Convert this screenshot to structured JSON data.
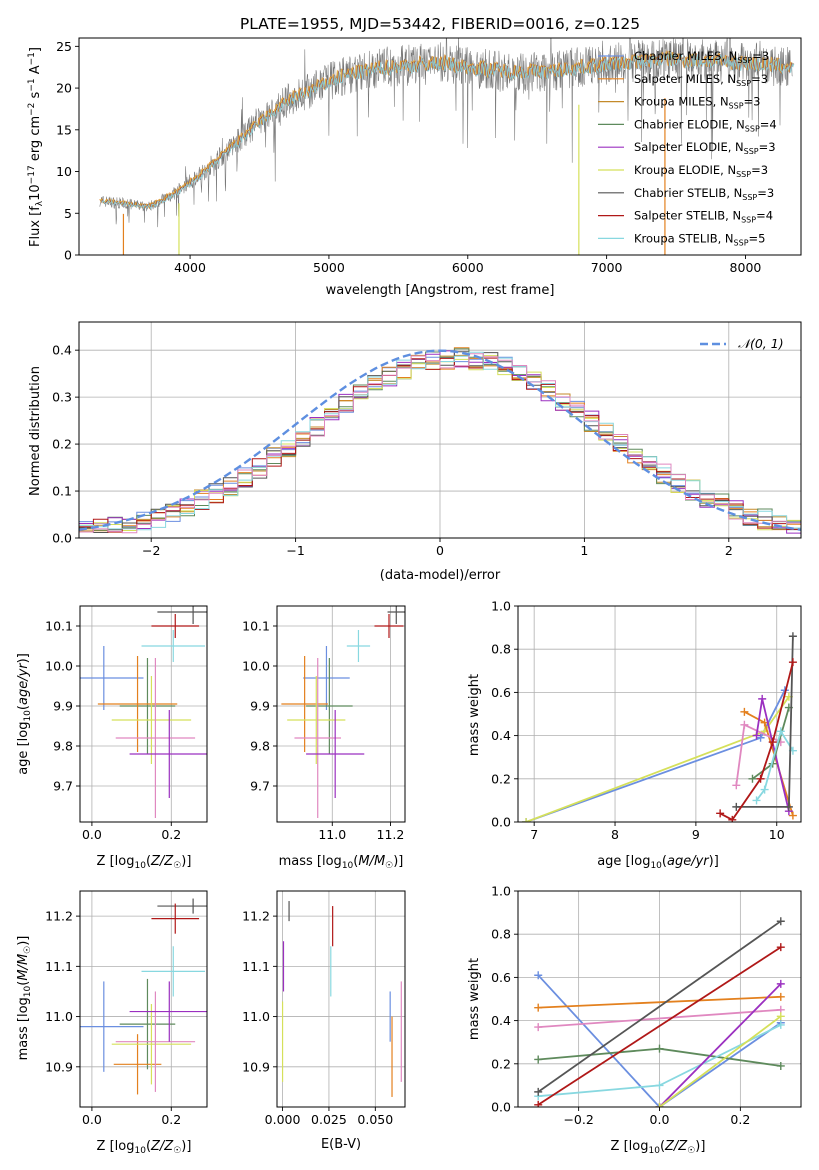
{
  "colors": {
    "chabrier_miles": "#6b8fe0",
    "salpeter_miles": "#e3801e",
    "kroupa_miles": "#c48a2a",
    "chabrier_elodie": "#5e8a5c",
    "salpeter_elodie": "#9b30c0",
    "kroupa_elodie": "#d5e05a",
    "chabrier_stelib": "#555555",
    "salpeter_stelib": "#b01818",
    "kroupa_stelib": "#88d8e0",
    "pink": "#e088c0",
    "normal_curve": "#5e8fe0",
    "gray_spectrum": "#777777"
  },
  "chart_data": [
    {
      "id": "spectrum",
      "type": "line",
      "title": "PLATE=1955, MJD=53442, FIBERID=0016, z=0.125",
      "xlabel": "wavelength [Angstrom, rest frame]",
      "ylabel": "Flux [f_λ10^-17 erg cm^-2 s^-1 A^-1]",
      "xlim": [
        3200,
        8400
      ],
      "ylim": [
        0,
        26
      ],
      "xticks": [
        4000,
        5000,
        6000,
        7000,
        8000
      ],
      "yticks": [
        0,
        5,
        10,
        15,
        20,
        25
      ],
      "grid": false,
      "legend_placement": "right",
      "continuum": [
        [
          3350,
          6.5
        ],
        [
          3700,
          5.8
        ],
        [
          3900,
          7.5
        ],
        [
          4100,
          10
        ],
        [
          4300,
          13
        ],
        [
          4500,
          16
        ],
        [
          4700,
          18.5
        ],
        [
          4900,
          20
        ],
        [
          5100,
          21.5
        ],
        [
          5400,
          22.5
        ],
        [
          5800,
          23
        ],
        [
          6000,
          22.5
        ],
        [
          6300,
          22
        ],
        [
          6600,
          22
        ],
        [
          6800,
          22.5
        ],
        [
          7100,
          23
        ],
        [
          7400,
          23.5
        ],
        [
          7700,
          23.3
        ],
        [
          8000,
          23
        ],
        [
          8350,
          22.5
        ]
      ],
      "series": [
        {
          "label": "Chabrier MILES, N_SSP=3",
          "name": "Chabrier MILES, N",
          "sub": "SSP",
          "eq": "=3",
          "color_key": "chabrier_miles"
        },
        {
          "label": "Salpeter MILES, N_SSP=3",
          "name": "Salpeter MILES, N",
          "sub": "SSP",
          "eq": "=3",
          "color_key": "salpeter_miles"
        },
        {
          "label": "Kroupa MILES, N_SSP=3",
          "name": "Kroupa MILES, N",
          "sub": "SSP",
          "eq": "=3",
          "color_key": "kroupa_miles"
        },
        {
          "label": "Chabrier ELODIE, N_SSP=4",
          "name": "Chabrier ELODIE, N",
          "sub": "SSP",
          "eq": "=4",
          "color_key": "chabrier_elodie"
        },
        {
          "label": "Salpeter ELODIE, N_SSP=3",
          "name": "Salpeter ELODIE, N",
          "sub": "SSP",
          "eq": "=3",
          "color_key": "salpeter_elodie"
        },
        {
          "label": "Kroupa ELODIE, N_SSP=3",
          "name": "Kroupa ELODIE, N",
          "sub": "SSP",
          "eq": "=3",
          "color_key": "kroupa_elodie"
        },
        {
          "label": "Chabrier STELIB, N_SSP=3",
          "name": "Chabrier STELIB, N",
          "sub": "SSP",
          "eq": "=3",
          "color_key": "chabrier_stelib"
        },
        {
          "label": "Salpeter STELIB, N_SSP=4",
          "name": "Salpeter STELIB, N",
          "sub": "SSP",
          "eq": "=4",
          "color_key": "salpeter_stelib"
        },
        {
          "label": "Kroupa STELIB, N_SSP=5",
          "name": "Kroupa STELIB, N",
          "sub": "SSP",
          "eq": "=5",
          "color_key": "kroupa_stelib"
        }
      ]
    },
    {
      "id": "residuals",
      "type": "line",
      "xlabel": "(data-model)/error",
      "ylabel": "Normed distribution",
      "xlim": [
        -2.5,
        2.5
      ],
      "ylim": [
        0,
        0.46
      ],
      "xticks": [
        -2,
        -1,
        0,
        1,
        2
      ],
      "xtick_labels": [
        "−2",
        "−1",
        "0",
        "1",
        "2"
      ],
      "yticks": [
        0.0,
        0.1,
        0.2,
        0.3,
        0.4
      ],
      "ytick_labels": [
        "0.0",
        "0.1",
        "0.2",
        "0.3",
        "0.4"
      ],
      "grid": true,
      "legend_placement": "top-right",
      "legend_label": "𝒩(0, 1)",
      "normal_mu": 0.0,
      "normal_sigma": 1.0,
      "bin_width": 0.1
    },
    {
      "id": "age_vs_Z",
      "type": "scatter",
      "xlabel": "Z [log10(Z/Z☉)]",
      "ylabel": "age [log10(age/yr)]",
      "xlim": [
        -0.03,
        0.29
      ],
      "ylim": [
        9.61,
        10.15
      ],
      "xticks": [
        0.0,
        0.2
      ],
      "xtick_labels": [
        "0.0",
        "0.2"
      ],
      "yticks": [
        9.7,
        9.8,
        9.9,
        10.0,
        10.1
      ],
      "ytick_labels": [
        "9.7",
        "9.8",
        "9.9",
        "10.0",
        "10.1"
      ],
      "grid": true,
      "points": [
        {
          "color_key": "chabrier_stelib",
          "x": 0.255,
          "xerr": 0.09,
          "y": 10.135,
          "yerr": 0.03
        },
        {
          "color_key": "salpeter_stelib",
          "x": 0.21,
          "xerr": 0.06,
          "y": 10.1,
          "yerr": 0.03
        },
        {
          "color_key": "kroupa_stelib",
          "x": 0.205,
          "xerr": 0.08,
          "y": 10.05,
          "yerr": 0.04
        },
        {
          "color_key": "chabrier_miles",
          "x": 0.03,
          "xerr": 0.1,
          "y": 9.97,
          "yerr": 0.08
        },
        {
          "color_key": "chabrier_elodie",
          "x": 0.14,
          "xerr": 0.07,
          "y": 9.9,
          "yerr": 0.12
        },
        {
          "color_key": "salpeter_miles",
          "x": 0.115,
          "xerr": 0.1,
          "y": 9.905,
          "yerr": 0.12
        },
        {
          "color_key": "kroupa_elodie",
          "x": 0.15,
          "xerr": 0.1,
          "y": 9.865,
          "yerr": 0.11
        },
        {
          "color_key": "pink",
          "x": 0.16,
          "xerr": 0.1,
          "y": 9.82,
          "yerr": 0.2
        },
        {
          "color_key": "salpeter_elodie",
          "x": 0.195,
          "xerr": 0.1,
          "y": 9.78,
          "yerr": 0.11
        }
      ]
    },
    {
      "id": "age_vs_mass",
      "type": "scatter",
      "xlabel": "mass [log10(M/M☉)]",
      "xlim": [
        10.81,
        11.25
      ],
      "ylim": [
        9.61,
        10.15
      ],
      "xticks": [
        11.0,
        11.2
      ],
      "xtick_labels": [
        "11.0",
        "11.2"
      ],
      "yticks": [
        9.7,
        9.8,
        9.9,
        10.0,
        10.1
      ],
      "ytick_labels": [
        "9.7",
        "9.8",
        "9.9",
        "10.0",
        "10.1"
      ],
      "grid": true,
      "points": [
        {
          "color_key": "chabrier_stelib",
          "x": 11.22,
          "xerr": 0.03,
          "y": 10.135,
          "yerr": 0.03
        },
        {
          "color_key": "salpeter_stelib",
          "x": 11.195,
          "xerr": 0.05,
          "y": 10.1,
          "yerr": 0.03
        },
        {
          "color_key": "kroupa_stelib",
          "x": 11.09,
          "xerr": 0.04,
          "y": 10.05,
          "yerr": 0.04
        },
        {
          "color_key": "chabrier_miles",
          "x": 10.98,
          "xerr": 0.08,
          "y": 9.97,
          "yerr": 0.08
        },
        {
          "color_key": "chabrier_elodie",
          "x": 10.99,
          "xerr": 0.08,
          "y": 9.9,
          "yerr": 0.12
        },
        {
          "color_key": "salpeter_miles",
          "x": 10.905,
          "xerr": 0.08,
          "y": 9.905,
          "yerr": 0.12
        },
        {
          "color_key": "kroupa_elodie",
          "x": 10.945,
          "xerr": 0.1,
          "y": 9.865,
          "yerr": 0.11
        },
        {
          "color_key": "pink",
          "x": 10.95,
          "xerr": 0.08,
          "y": 9.82,
          "yerr": 0.2
        },
        {
          "color_key": "salpeter_elodie",
          "x": 11.01,
          "xerr": 0.1,
          "y": 9.78,
          "yerr": 0.11
        }
      ]
    },
    {
      "id": "weight_vs_age",
      "type": "line",
      "xlabel": "age [log10(age/yr)]",
      "ylabel": "mass weight",
      "xlim": [
        6.8,
        10.3
      ],
      "ylim": [
        0,
        1
      ],
      "xticks": [
        7,
        8,
        9,
        10
      ],
      "xtick_labels": [
        "7",
        "8",
        "9",
        "10"
      ],
      "yticks": [
        0,
        0.2,
        0.4,
        0.6,
        0.8,
        1.0
      ],
      "ytick_labels": [
        "0.0",
        "0.2",
        "0.4",
        "0.6",
        "0.8",
        "1.0"
      ],
      "grid": true,
      "series": [
        {
          "color_key": "chabrier_miles",
          "points": [
            [
              6.9,
              0.0
            ],
            [
              9.8,
              0.39
            ],
            [
              10.1,
              0.61
            ]
          ]
        },
        {
          "color_key": "kroupa_elodie",
          "points": [
            [
              6.9,
              0.0
            ],
            [
              9.85,
              0.42
            ],
            [
              10.15,
              0.58
            ]
          ]
        },
        {
          "color_key": "salpeter_miles",
          "points": [
            [
              9.6,
              0.51
            ],
            [
              9.85,
              0.46
            ],
            [
              10.2,
              0.03
            ]
          ]
        },
        {
          "color_key": "pink",
          "points": [
            [
              9.5,
              0.17
            ],
            [
              9.6,
              0.45
            ],
            [
              10.05,
              0.37
            ]
          ]
        },
        {
          "color_key": "salpeter_elodie",
          "points": [
            [
              9.75,
              0.4
            ],
            [
              9.82,
              0.57
            ],
            [
              10.15,
              0.05
            ]
          ]
        },
        {
          "color_key": "chabrier_elodie",
          "points": [
            [
              9.7,
              0.2
            ],
            [
              9.95,
              0.27
            ],
            [
              10.15,
              0.53
            ]
          ]
        },
        {
          "color_key": "kroupa_stelib",
          "points": [
            [
              9.75,
              0.1
            ],
            [
              9.85,
              0.15
            ],
            [
              10.05,
              0.42
            ],
            [
              10.2,
              0.33
            ]
          ]
        },
        {
          "color_key": "chabrier_stelib",
          "points": [
            [
              9.5,
              0.07
            ],
            [
              10.15,
              0.07
            ],
            [
              10.2,
              0.86
            ]
          ]
        },
        {
          "color_key": "salpeter_stelib",
          "points": [
            [
              9.3,
              0.04
            ],
            [
              9.45,
              0.01
            ],
            [
              9.8,
              0.2
            ],
            [
              9.95,
              0.37
            ],
            [
              10.2,
              0.74
            ]
          ]
        }
      ]
    },
    {
      "id": "mass_vs_Z",
      "type": "scatter",
      "xlabel": "Z [log10(Z/Z☉)]",
      "ylabel": "mass [log10(M/M☉)]",
      "xlim": [
        -0.03,
        0.29
      ],
      "ylim": [
        10.82,
        11.25
      ],
      "xticks": [
        0.0,
        0.2
      ],
      "xtick_labels": [
        "0.0",
        "0.2"
      ],
      "yticks": [
        10.9,
        11.0,
        11.1,
        11.2
      ],
      "ytick_labels": [
        "10.9",
        "11.0",
        "11.1",
        "11.2"
      ],
      "grid": true,
      "points": [
        {
          "color_key": "chabrier_stelib",
          "x": 0.255,
          "xerr": 0.09,
          "y": 11.22,
          "yerr": 0.015
        },
        {
          "color_key": "salpeter_stelib",
          "x": 0.21,
          "xerr": 0.06,
          "y": 11.195,
          "yerr": 0.03
        },
        {
          "color_key": "kroupa_stelib",
          "x": 0.205,
          "xerr": 0.08,
          "y": 11.09,
          "yerr": 0.05
        },
        {
          "color_key": "chabrier_miles",
          "x": 0.03,
          "xerr": 0.1,
          "y": 10.98,
          "yerr": 0.09
        },
        {
          "color_key": "chabrier_elodie",
          "x": 0.14,
          "xerr": 0.07,
          "y": 10.985,
          "yerr": 0.09
        },
        {
          "color_key": "salpeter_miles",
          "x": 0.115,
          "xerr": 0.06,
          "y": 10.905,
          "yerr": 0.06
        },
        {
          "color_key": "kroupa_elodie",
          "x": 0.15,
          "xerr": 0.1,
          "y": 10.945,
          "yerr": 0.08
        },
        {
          "color_key": "pink",
          "x": 0.16,
          "xerr": 0.1,
          "y": 10.95,
          "yerr": 0.1
        },
        {
          "color_key": "salpeter_elodie",
          "x": 0.195,
          "xerr": 0.1,
          "y": 11.01,
          "yerr": 0.06
        }
      ]
    },
    {
      "id": "mass_vs_EBV",
      "type": "scatter",
      "xlabel": "E(B-V)",
      "xlim": [
        -0.003,
        0.066
      ],
      "ylim": [
        10.82,
        11.25
      ],
      "xticks": [
        0.0,
        0.025,
        0.05
      ],
      "xtick_labels": [
        "0.000",
        "0.025",
        "0.050"
      ],
      "yticks": [
        10.9,
        11.0,
        11.1,
        11.2
      ],
      "ytick_labels": [
        "10.9",
        "11.0",
        "11.1",
        "11.2"
      ],
      "grid": true,
      "points": [
        {
          "color_key": "chabrier_stelib",
          "x": 0.0035,
          "y": 11.21,
          "yerr": 0.02
        },
        {
          "color_key": "salpeter_elodie",
          "x": 0.0005,
          "y": 11.1,
          "yerr": 0.05
        },
        {
          "color_key": "kroupa_elodie",
          "x": 0.0,
          "y": 10.95,
          "yerr": 0.08
        },
        {
          "color_key": "salpeter_stelib",
          "x": 0.027,
          "y": 11.18,
          "yerr": 0.04
        },
        {
          "color_key": "kroupa_stelib",
          "x": 0.026,
          "y": 11.09,
          "yerr": 0.05
        },
        {
          "color_key": "chabrier_miles",
          "x": 0.058,
          "y": 11.0,
          "yerr": 0.05
        },
        {
          "color_key": "salpeter_miles",
          "x": 0.059,
          "y": 10.92,
          "yerr": 0.08
        },
        {
          "color_key": "pink",
          "x": 0.064,
          "y": 10.97,
          "yerr": 0.1
        }
      ]
    },
    {
      "id": "weight_vs_Z",
      "type": "line",
      "xlabel": "Z [log10(Z/Z☉)]",
      "ylabel": "mass weight",
      "xlim": [
        -0.35,
        0.35
      ],
      "ylim": [
        0,
        1
      ],
      "xticks": [
        -0.2,
        0.0,
        0.2
      ],
      "xtick_labels": [
        "−0.2",
        "0.0",
        "0.2"
      ],
      "yticks": [
        0,
        0.2,
        0.4,
        0.6,
        0.8,
        1.0
      ],
      "ytick_labels": [
        "0.0",
        "0.2",
        "0.4",
        "0.6",
        "0.8",
        "1.0"
      ],
      "grid": true,
      "series": [
        {
          "color_key": "chabrier_miles",
          "points": [
            [
              -0.3,
              0.61
            ],
            [
              0.0,
              0.0
            ],
            [
              0.3,
              0.39
            ]
          ]
        },
        {
          "color_key": "salpeter_miles",
          "points": [
            [
              -0.3,
              0.46
            ],
            [
              0.3,
              0.51
            ]
          ]
        },
        {
          "color_key": "pink",
          "points": [
            [
              -0.3,
              0.37
            ],
            [
              0.3,
              0.45
            ]
          ]
        },
        {
          "color_key": "chabrier_elodie",
          "points": [
            [
              -0.3,
              0.22
            ],
            [
              0.0,
              0.27
            ],
            [
              0.3,
              0.19
            ]
          ]
        },
        {
          "color_key": "kroupa_stelib",
          "points": [
            [
              -0.3,
              0.05
            ],
            [
              0.0,
              0.1
            ],
            [
              0.3,
              0.38
            ]
          ]
        },
        {
          "color_key": "chabrier_stelib",
          "points": [
            [
              -0.3,
              0.07
            ],
            [
              0.3,
              0.86
            ]
          ]
        },
        {
          "color_key": "salpeter_stelib",
          "points": [
            [
              -0.3,
              0.01
            ],
            [
              0.3,
              0.74
            ]
          ]
        },
        {
          "color_key": "salpeter_elodie",
          "points": [
            [
              0.0,
              0.0
            ],
            [
              0.3,
              0.57
            ]
          ]
        },
        {
          "color_key": "kroupa_elodie",
          "points": [
            [
              0.0,
              0.0
            ],
            [
              0.3,
              0.42
            ]
          ]
        }
      ]
    }
  ]
}
